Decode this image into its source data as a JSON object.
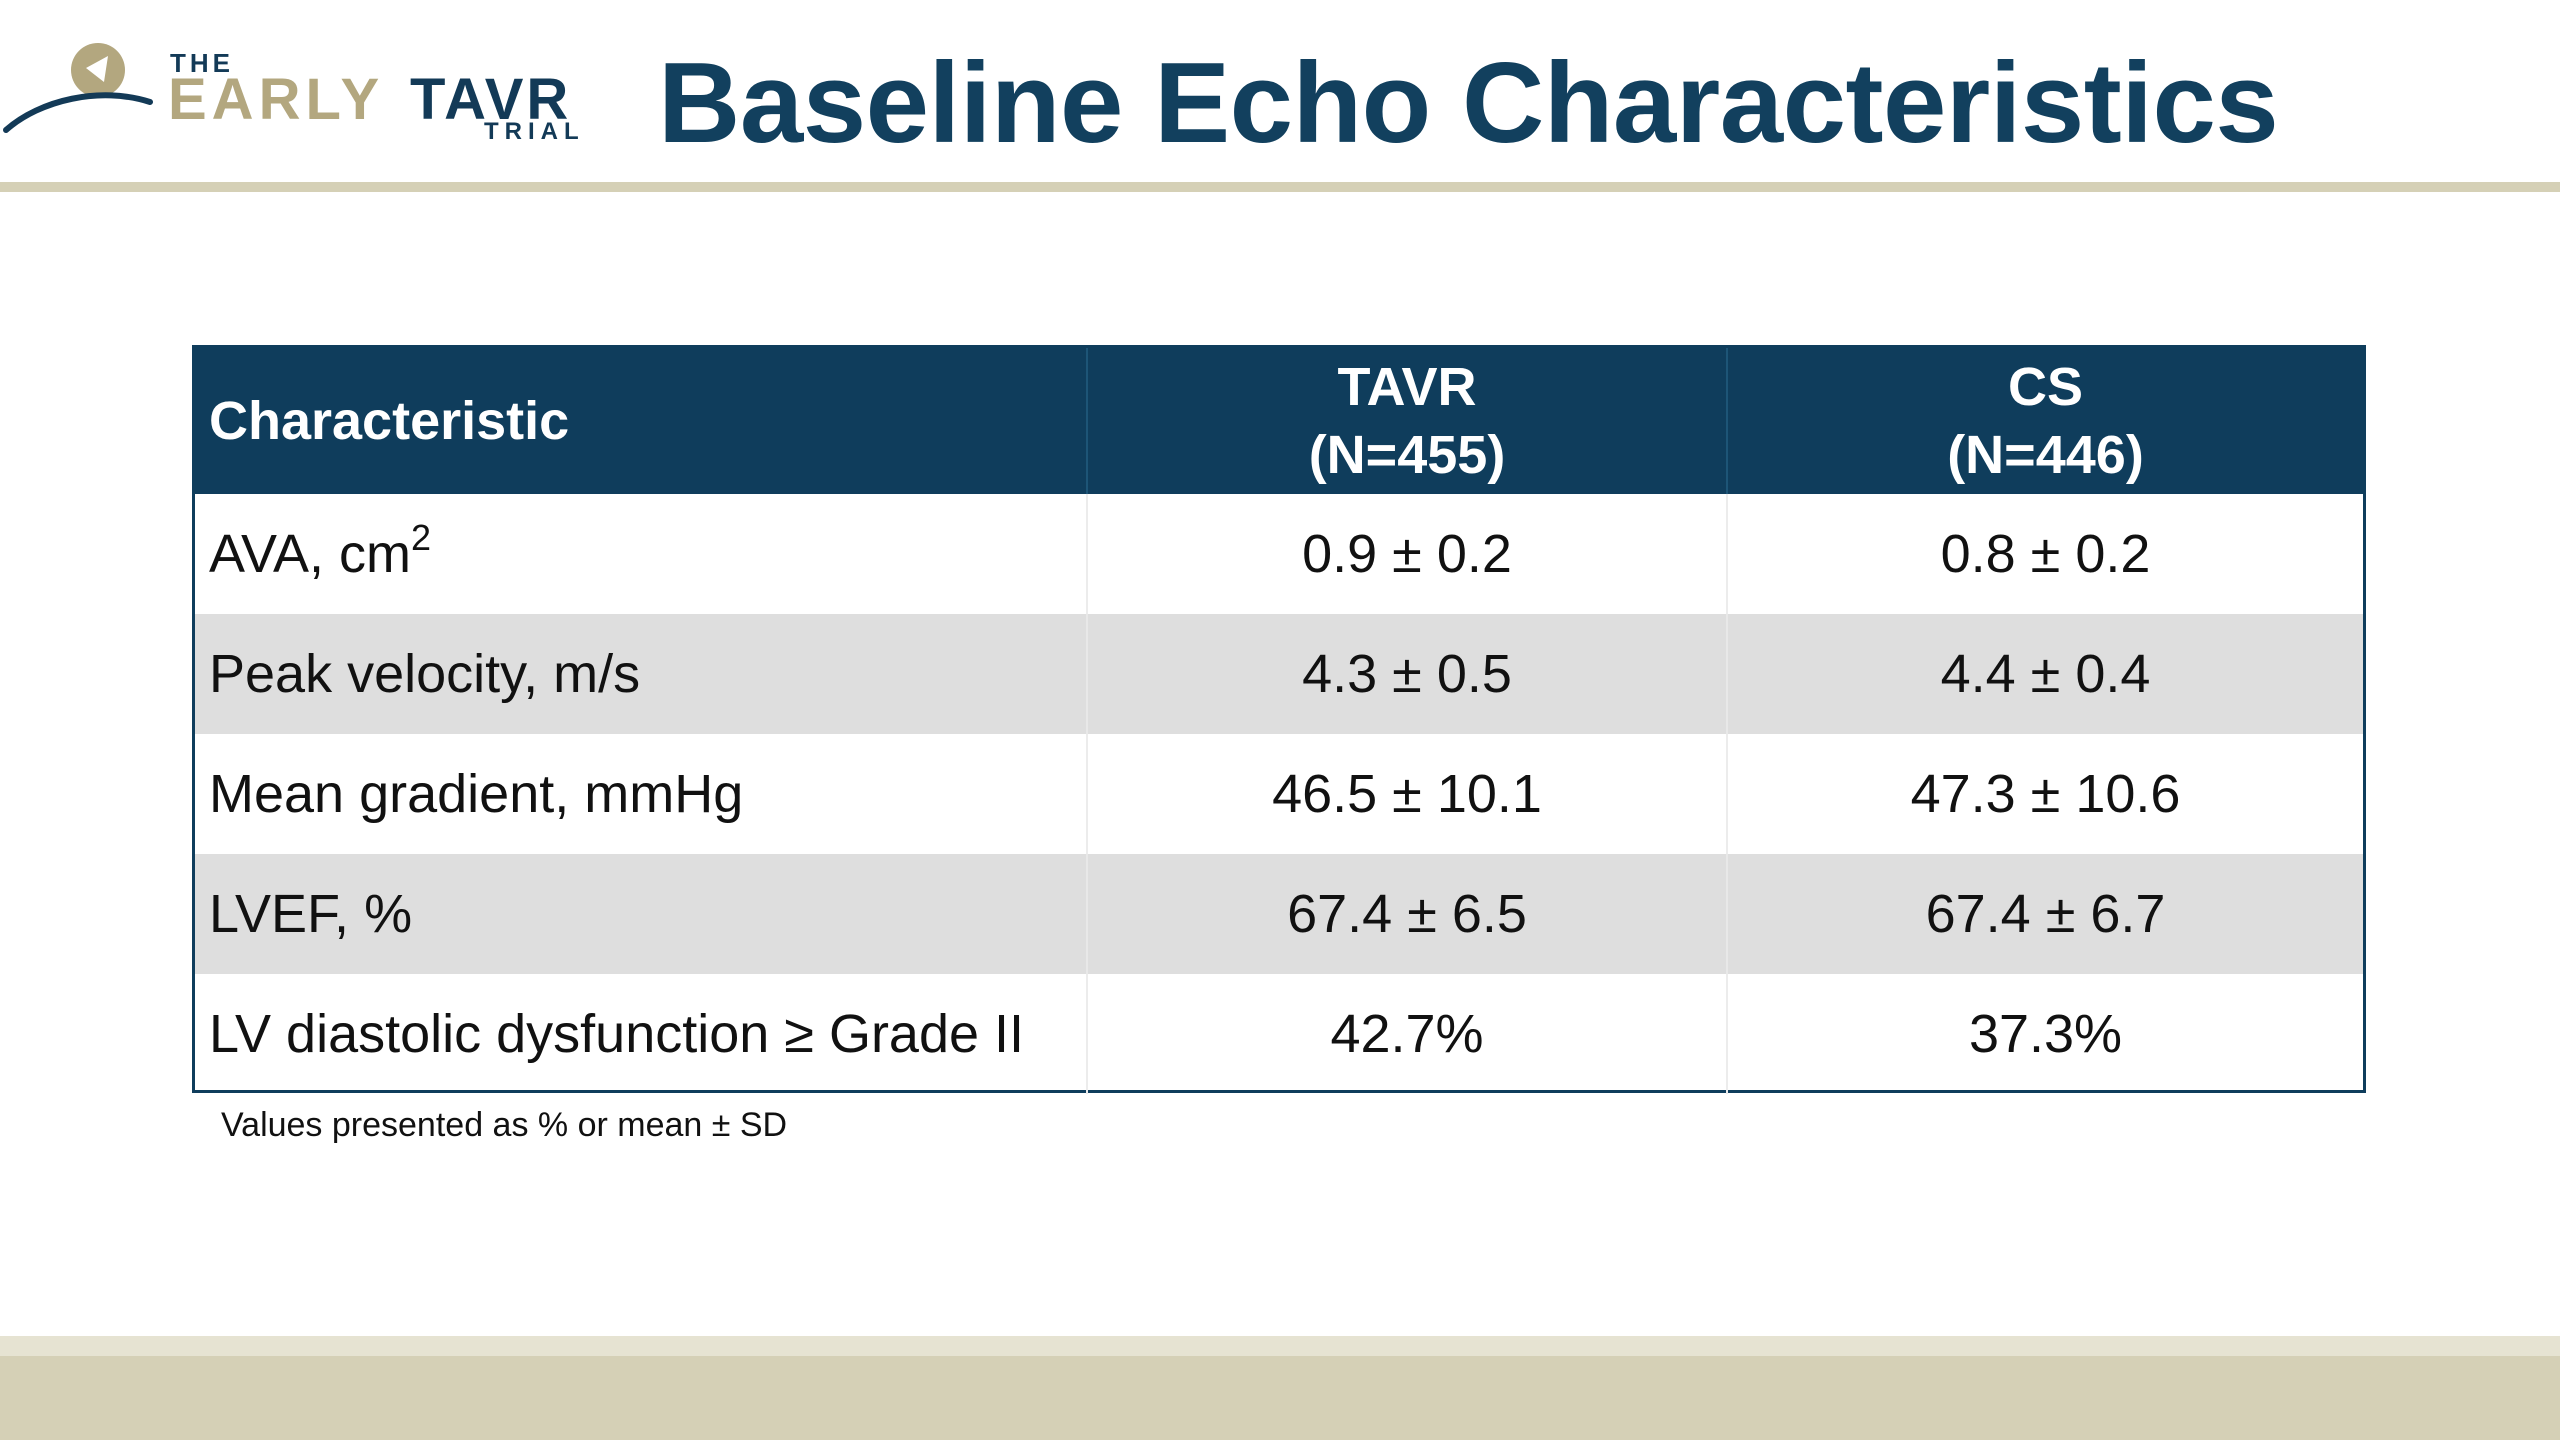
{
  "header": {
    "logo": {
      "the": "THE",
      "early": "EARLY",
      "tavr": "TAVR",
      "trial": "TRIAL"
    },
    "title": "Baseline Echo Characteristics"
  },
  "table": {
    "columns": [
      {
        "line1": "Characteristic"
      },
      {
        "line1": "TAVR",
        "line2": "(N=455)"
      },
      {
        "line1": "CS",
        "line2": "(N=446)"
      }
    ],
    "rows": [
      {
        "label": "AVA, cm",
        "label_sup": "2",
        "tavr": "0.9 ± 0.2",
        "cs": "0.8 ± 0.2"
      },
      {
        "label": "Peak velocity, m/s",
        "tavr": "4.3 ± 0.5",
        "cs": "4.4 ± 0.4"
      },
      {
        "label": "Mean gradient, mmHg",
        "tavr": "46.5 ± 10.1",
        "cs": "47.3 ± 10.6"
      },
      {
        "label": "LVEF, %",
        "tavr": "67.4 ± 6.5",
        "cs": "67.4 ± 6.7"
      },
      {
        "label": "LV diastolic dysfunction ≥ Grade II",
        "tavr": "42.7%",
        "cs": "37.3%"
      }
    ]
  },
  "footnote": "Values presented as % or mean ± SD",
  "colors": {
    "title": "#12405e",
    "header_bg": "#0f3d5c",
    "shade_row": "#dedede",
    "rule": "#d5d0b6",
    "logo_gold": "#b3a77f"
  }
}
